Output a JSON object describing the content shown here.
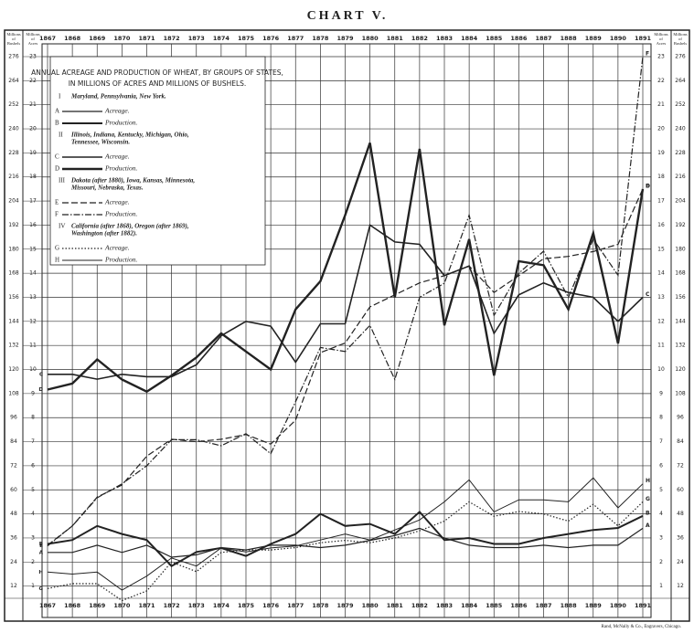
{
  "chart_data": {
    "type": "line",
    "title": "CHART V.",
    "legend_title": [
      "ANNUAL ACREAGE AND PRODUCTION OF WHEAT, BY GROUPS OF STATES,",
      "IN MILLIONS OF ACRES AND MILLIONS OF BUSHELS."
    ],
    "y_label": [
      "Millions",
      "of",
      "Bushels"
    ],
    "y2_label": [
      "Millions",
      "of",
      "Acres"
    ],
    "credit": "Rand, McNally & Co., Engravers, Chicago.",
    "categories": [
      "1867",
      "1868",
      "1869",
      "1870",
      "1871",
      "1872",
      "1873",
      "1874",
      "1875",
      "1876",
      "1877",
      "1878",
      "1879",
      "1880",
      "1881",
      "1882",
      "1883",
      "1884",
      "1885",
      "1886",
      "1887",
      "1888",
      "1889",
      "1890",
      "1891"
    ],
    "ylim": [
      0,
      276
    ],
    "yticks": [
      12,
      24,
      36,
      48,
      60,
      72,
      84,
      96,
      108,
      120,
      132,
      144,
      156,
      168,
      180,
      192,
      204,
      216,
      228,
      240,
      252,
      264,
      276
    ],
    "y2lim": [
      0,
      23
    ],
    "y2ticks": [
      1,
      2,
      3,
      4,
      5,
      6,
      7,
      8,
      9,
      10,
      11,
      12,
      13,
      14,
      15,
      16,
      17,
      18,
      19,
      20,
      21,
      22,
      23
    ],
    "grid": true,
    "groups": [
      {
        "numeral": "I",
        "states": [
          "Maryland, Pennsylvania, New York."
        ]
      },
      {
        "numeral": "II",
        "states": [
          "Illinois, Indiana, Kentucky, Michigan, Ohio,",
          "Tennessee, Wisconsin."
        ]
      },
      {
        "numeral": "III",
        "states": [
          "Dakota (after 1880), Iowa, Kansas, Minnesota,",
          "Missouri, Nebraska, Texas."
        ]
      },
      {
        "numeral": "IV",
        "states": [
          "California (after 1868), Oregon (after 1869),",
          "Washington (after 1882)."
        ]
      }
    ],
    "series": [
      {
        "letter": "A",
        "name": "Acreage.",
        "group": 0,
        "axis": "y2",
        "color": "#222",
        "style": "solid",
        "width": 1.2,
        "values": [
          2.4,
          2.4,
          2.7,
          2.4,
          2.7,
          2.2,
          2.3,
          2.6,
          2.5,
          2.7,
          2.7,
          2.6,
          2.7,
          2.9,
          3.1,
          3.4,
          3.0,
          2.7,
          2.6,
          2.6,
          2.7,
          2.6,
          2.7,
          2.7,
          3.4
        ]
      },
      {
        "letter": "B",
        "name": "Production.",
        "group": 0,
        "color": "#222",
        "style": "solid",
        "width": 2,
        "values": [
          33,
          35,
          42,
          38,
          35,
          22,
          29,
          31,
          27,
          33,
          38,
          48,
          42,
          43,
          38,
          49,
          35,
          36,
          33,
          33,
          36,
          38,
          40,
          41,
          47
        ]
      },
      {
        "letter": "C",
        "name": "Acreage.",
        "group": 1,
        "axis": "y2",
        "color": "#222",
        "style": "solid",
        "width": 1.6,
        "values": [
          9.8,
          9.8,
          9.6,
          9.8,
          9.7,
          9.7,
          10.2,
          11.4,
          12.0,
          11.8,
          10.3,
          11.9,
          11.9,
          16.0,
          15.3,
          15.2,
          13.9,
          14.3,
          11.5,
          13.1,
          13.6,
          13.2,
          13.0,
          12.0,
          13.0
        ]
      },
      {
        "letter": "D",
        "name": "Production.",
        "group": 1,
        "color": "#222",
        "style": "solid",
        "width": 2.4,
        "values": [
          110,
          113,
          125,
          115,
          109,
          117,
          126,
          138,
          129,
          120,
          150,
          164,
          197,
          233,
          156,
          230,
          142,
          185,
          117,
          174,
          172,
          150,
          188,
          133,
          210
        ]
      },
      {
        "letter": "E",
        "name": "Acreage.",
        "group": 2,
        "axis": "y2",
        "color": "#222",
        "style": "dashed",
        "width": 1.2,
        "values": [
          2.7,
          3.5,
          4.7,
          5.2,
          6.4,
          7.1,
          7.0,
          7.1,
          7.3,
          6.9,
          7.9,
          10.7,
          11.1,
          12.6,
          13.1,
          13.6,
          13.9,
          14.3,
          13.2,
          13.9,
          14.6,
          14.7,
          14.9,
          15.2,
          17.5
        ]
      },
      {
        "letter": "F",
        "name": "Production.",
        "group": 2,
        "color": "#222",
        "style": "dashdot",
        "width": 1.2,
        "values": [
          32,
          42,
          56,
          63,
          72,
          85,
          85,
          82,
          88,
          78,
          104,
          131,
          129,
          142,
          115,
          156,
          163,
          197,
          147,
          168,
          179,
          156,
          185,
          167,
          276
        ]
      },
      {
        "letter": "G",
        "name": "Acreage.",
        "group": 3,
        "axis": "y2",
        "color": "#222",
        "style": "dotted",
        "width": 1.2,
        "values": [
          0.9,
          1.1,
          1.1,
          0.4,
          0.8,
          2.0,
          1.6,
          2.4,
          2.5,
          2.5,
          2.6,
          2.8,
          2.9,
          2.8,
          3.0,
          3.3,
          3.7,
          4.5,
          3.9,
          4.1,
          4.0,
          3.7,
          4.4,
          3.5,
          4.5
        ]
      },
      {
        "letter": "H",
        "name": "Production.",
        "group": 3,
        "color": "#222",
        "style": "solid",
        "width": 1,
        "values": [
          19,
          18,
          19,
          10,
          17,
          26,
          22,
          31,
          29,
          31,
          32,
          35,
          38,
          35,
          40,
          45,
          54,
          65,
          49,
          55,
          55,
          54,
          66,
          51,
          63
        ]
      }
    ]
  }
}
